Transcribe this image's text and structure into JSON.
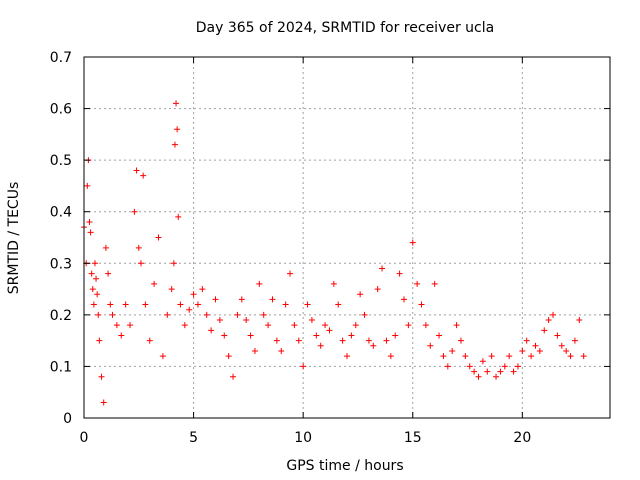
{
  "chart_data": {
    "type": "scatter",
    "title": "Day 365 of 2024, SRMTID for receiver ucla",
    "xlabel": "GPS time / hours",
    "ylabel": "SRMTID / TECUs",
    "xlim": [
      0,
      24
    ],
    "ylim": [
      0,
      0.7
    ],
    "xticks": [
      0,
      5,
      10,
      15,
      20
    ],
    "xtick_labels": [
      "0",
      "5",
      "10",
      "15",
      "20"
    ],
    "yticks": [
      0,
      0.1,
      0.2,
      0.3,
      0.4,
      0.5,
      0.6,
      0.7
    ],
    "ytick_labels": [
      "0",
      "0.1",
      "0.2",
      "0.3",
      "0.4",
      "0.5",
      "0.6",
      "0.7"
    ],
    "grid": true,
    "marker": "+",
    "color": "#ff0000",
    "series": [
      {
        "name": "SRMTID",
        "x": [
          0.0,
          0.1,
          0.15,
          0.2,
          0.25,
          0.3,
          0.35,
          0.4,
          0.45,
          0.5,
          0.55,
          0.6,
          0.65,
          0.7,
          0.8,
          0.9,
          1.0,
          1.1,
          1.2,
          1.3,
          1.5,
          1.7,
          1.9,
          2.1,
          2.3,
          2.4,
          2.5,
          2.6,
          2.7,
          2.8,
          3.0,
          3.2,
          3.4,
          3.6,
          3.8,
          4.0,
          4.1,
          4.15,
          4.2,
          4.25,
          4.3,
          4.4,
          4.6,
          4.8,
          5.0,
          5.2,
          5.4,
          5.6,
          5.8,
          6.0,
          6.2,
          6.4,
          6.6,
          6.8,
          7.0,
          7.2,
          7.4,
          7.6,
          7.8,
          8.0,
          8.2,
          8.4,
          8.6,
          8.8,
          9.0,
          9.2,
          9.4,
          9.6,
          9.8,
          10.0,
          10.2,
          10.4,
          10.6,
          10.8,
          11.0,
          11.2,
          11.4,
          11.6,
          11.8,
          12.0,
          12.2,
          12.4,
          12.6,
          12.8,
          13.0,
          13.2,
          13.4,
          13.6,
          13.8,
          14.0,
          14.2,
          14.4,
          14.6,
          14.8,
          15.0,
          15.2,
          15.4,
          15.6,
          15.8,
          16.0,
          16.2,
          16.4,
          16.6,
          16.8,
          17.0,
          17.2,
          17.4,
          17.6,
          17.8,
          18.0,
          18.2,
          18.4,
          18.6,
          18.8,
          19.0,
          19.2,
          19.4,
          19.6,
          19.8,
          20.0,
          20.2,
          20.4,
          20.6,
          20.8,
          21.0,
          21.2,
          21.4,
          21.6,
          21.8,
          22.0,
          22.2,
          22.4,
          22.6,
          22.8
        ],
        "y": [
          0.37,
          0.3,
          0.45,
          0.5,
          0.38,
          0.36,
          0.28,
          0.25,
          0.22,
          0.3,
          0.27,
          0.24,
          0.2,
          0.15,
          0.08,
          0.03,
          0.33,
          0.28,
          0.22,
          0.2,
          0.18,
          0.16,
          0.22,
          0.18,
          0.4,
          0.48,
          0.33,
          0.3,
          0.47,
          0.22,
          0.15,
          0.26,
          0.35,
          0.12,
          0.2,
          0.25,
          0.3,
          0.53,
          0.61,
          0.56,
          0.39,
          0.22,
          0.18,
          0.21,
          0.24,
          0.22,
          0.25,
          0.2,
          0.17,
          0.23,
          0.19,
          0.16,
          0.12,
          0.08,
          0.2,
          0.23,
          0.19,
          0.16,
          0.13,
          0.26,
          0.2,
          0.18,
          0.23,
          0.15,
          0.13,
          0.22,
          0.28,
          0.18,
          0.15,
          0.1,
          0.22,
          0.19,
          0.16,
          0.14,
          0.18,
          0.17,
          0.26,
          0.22,
          0.15,
          0.12,
          0.16,
          0.18,
          0.24,
          0.2,
          0.15,
          0.14,
          0.25,
          0.29,
          0.15,
          0.12,
          0.16,
          0.28,
          0.23,
          0.18,
          0.34,
          0.26,
          0.22,
          0.18,
          0.14,
          0.26,
          0.16,
          0.12,
          0.1,
          0.13,
          0.18,
          0.15,
          0.12,
          0.1,
          0.09,
          0.08,
          0.11,
          0.09,
          0.12,
          0.08,
          0.09,
          0.1,
          0.12,
          0.09,
          0.1,
          0.13,
          0.15,
          0.12,
          0.14,
          0.13,
          0.17,
          0.19,
          0.2,
          0.16,
          0.14,
          0.13,
          0.12,
          0.15,
          0.19,
          0.12
        ]
      }
    ]
  }
}
